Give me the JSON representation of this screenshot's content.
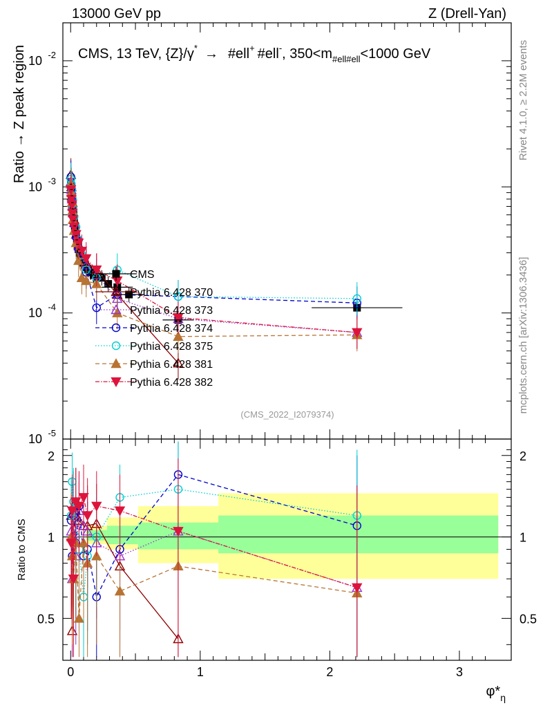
{
  "header": {
    "left": "13000 GeV pp",
    "right": "Z (Drell-Yan)"
  },
  "side_labels": {
    "rivet": "Rivet 4.1.0, ≥ 2.2M events",
    "site": "mcplots.cern.ch [arXiv:1306.3436]"
  },
  "chart_data": {
    "type": "scatter",
    "title": "CMS, 13 TeV, {Z}/γ* → #ell⁺ #ell⁻, 350<m_{#ell#ell}<1000 GeV",
    "title_parts": {
      "main": "CMS, 13 TeV, {Z}/γ",
      "star": "*",
      "arrow": "→",
      "lep1": "#ell",
      "sup1": "+",
      "lep2": "#ell",
      "sup2": "-",
      "mass": ", 350<m",
      "mass_sub": "#ell#ell",
      "mass_end": "<1000 GeV"
    },
    "watermark": "(CMS_2022_I2079374)",
    "xlabel": "φ*",
    "xlabel_sub": "η",
    "ylabel": "Ratio → Z peak region",
    "ylabel_ratio": "Ratio to CMS",
    "xlim": [
      -0.06,
      3.4
    ],
    "ylim": [
      1e-05,
      0.02
    ],
    "ylim_ratio": [
      0.35,
      2.3
    ],
    "x_ticks": [
      "0",
      "1",
      "2",
      "3"
    ],
    "x_tick_values": [
      0,
      1,
      2,
      3
    ],
    "y_ticks": [
      {
        "value": 0.01,
        "base": "10",
        "exp": "-2"
      },
      {
        "value": 0.001,
        "base": "10",
        "exp": "-3"
      },
      {
        "value": 0.0001,
        "base": "10",
        "exp": "-4"
      },
      {
        "value": 1e-05,
        "base": "10",
        "exp": "-5"
      }
    ],
    "ratio_ticks": [
      {
        "value": 0.5,
        "label": "0.5"
      },
      {
        "value": 1,
        "label": "1"
      },
      {
        "value": 2,
        "label": "2"
      }
    ],
    "bins": [
      [
        0.0,
        0.004
      ],
      [
        0.004,
        0.008
      ],
      [
        0.008,
        0.012
      ],
      [
        0.012,
        0.016
      ],
      [
        0.016,
        0.02
      ],
      [
        0.02,
        0.024
      ],
      [
        0.024,
        0.029
      ],
      [
        0.029,
        0.034
      ],
      [
        0.034,
        0.039
      ],
      [
        0.039,
        0.045
      ],
      [
        0.045,
        0.051
      ],
      [
        0.051,
        0.057
      ],
      [
        0.057,
        0.064
      ],
      [
        0.064,
        0.072
      ],
      [
        0.072,
        0.081
      ],
      [
        0.081,
        0.091
      ],
      [
        0.091,
        0.102
      ],
      [
        0.102,
        0.114
      ],
      [
        0.114,
        0.128
      ],
      [
        0.128,
        0.145
      ],
      [
        0.145,
        0.165
      ],
      [
        0.165,
        0.189
      ],
      [
        0.189,
        0.219
      ],
      [
        0.219,
        0.258
      ],
      [
        0.258,
        0.312
      ],
      [
        0.312,
        0.391
      ],
      [
        0.391,
        0.524
      ],
      [
        0.524,
        0.695
      ],
      [
        0.695,
        0.918
      ],
      [
        0.918,
        1.153
      ],
      [
        1.153,
        1.496
      ],
      [
        1.496,
        1.947
      ],
      [
        1.947,
        2.522
      ],
      [
        2.522,
        3.277
      ]
    ],
    "series": [
      {
        "name": "CMS",
        "color": "#000000",
        "marker": "square",
        "dash": "",
        "x": [
          0.002,
          0.006,
          0.01,
          0.014,
          0.018,
          0.022,
          0.027,
          0.032,
          0.037,
          0.042,
          0.048,
          0.054,
          0.061,
          0.068,
          0.077,
          0.086,
          0.097,
          0.108,
          0.12,
          0.136,
          0.155,
          0.177,
          0.2,
          0.24,
          0.29,
          0.36,
          0.45,
          0.83,
          2.21
        ],
        "y": [
          0.00105,
          0.00095,
          0.00085,
          0.00075,
          0.00067,
          0.0006,
          0.00054,
          0.00049,
          0.00045,
          0.00041,
          0.00038,
          0.00035,
          0.00032,
          0.0003,
          0.00028,
          0.00026,
          0.00025,
          0.00024,
          0.00023,
          0.00022,
          0.00021,
          0.0002,
          0.00019,
          0.00019,
          0.00017,
          0.00016,
          0.00014,
          8.8e-05,
          0.00011
        ]
      },
      {
        "name": "Pythia 6.428 370",
        "color": "#8b0000",
        "marker": "tri-up-open",
        "dash": "",
        "x": [
          0.002,
          0.006,
          0.01,
          0.014,
          0.018,
          0.027,
          0.042,
          0.061,
          0.086,
          0.12,
          0.2,
          0.36,
          0.83
        ],
        "y": [
          0.00125,
          0.001,
          0.00085,
          0.00075,
          0.00063,
          0.00055,
          0.00042,
          0.00035,
          0.00028,
          0.00025,
          0.00022,
          0.00014,
          4e-05
        ]
      },
      {
        "name": "Pythia 6.428 373",
        "color": "#9932cc",
        "marker": "tri-up-open",
        "dash": "1.5,2.5",
        "x": [
          0.002,
          0.006,
          0.01,
          0.014,
          0.018,
          0.027,
          0.042,
          0.061,
          0.086,
          0.12,
          0.2,
          0.36,
          0.83,
          2.21
        ],
        "y": [
          0.0011,
          0.00095,
          0.0008,
          0.0007,
          0.00062,
          0.00052,
          0.00042,
          0.00034,
          0.00028,
          0.00024,
          0.0002,
          0.00013,
          9e-05,
          7e-05
        ]
      },
      {
        "name": "Pythia 6.428 374",
        "color": "#0000cd",
        "marker": "circle-open",
        "dash": "6,4",
        "x": [
          0.002,
          0.006,
          0.01,
          0.014,
          0.018,
          0.027,
          0.042,
          0.061,
          0.086,
          0.12,
          0.2,
          0.36,
          0.83,
          2.21
        ],
        "y": [
          0.0012,
          0.00098,
          0.00078,
          0.00068,
          0.0006,
          0.0005,
          0.0004,
          0.00032,
          0.00026,
          0.00021,
          0.00011,
          0.00014,
          0.000135,
          0.00012
        ]
      },
      {
        "name": "Pythia 6.428 375",
        "color": "#00ced1",
        "marker": "circle-open",
        "dash": "1.5,2.5",
        "x": [
          0.002,
          0.006,
          0.01,
          0.014,
          0.018,
          0.027,
          0.042,
          0.061,
          0.086,
          0.12,
          0.2,
          0.36,
          0.83,
          2.21
        ],
        "y": [
          0.00115,
          0.00105,
          0.00095,
          0.0008,
          0.00068,
          0.00058,
          0.00048,
          0.00038,
          0.00029,
          0.00022,
          0.00019,
          0.00022,
          0.000135,
          0.00013
        ]
      },
      {
        "name": "Pythia 6.428 381",
        "color": "#b87333",
        "marker": "tri-up-filled",
        "dash": "6,4",
        "x": [
          0.002,
          0.006,
          0.01,
          0.014,
          0.018,
          0.027,
          0.042,
          0.061,
          0.086,
          0.12,
          0.2,
          0.36,
          0.83,
          2.21
        ],
        "y": [
          0.00105,
          0.0009,
          0.00075,
          0.00065,
          0.00055,
          0.00045,
          0.00036,
          0.00026,
          0.00019,
          0.00018,
          0.00017,
          0.0001,
          6.5e-05,
          6.7e-05
        ]
      },
      {
        "name": "Pythia 6.428 382",
        "color": "#dc143c",
        "marker": "tri-down-filled",
        "dash": "6,2,1.5,2",
        "x": [
          0.002,
          0.006,
          0.01,
          0.014,
          0.018,
          0.027,
          0.042,
          0.061,
          0.086,
          0.12,
          0.2,
          0.36,
          0.83,
          2.21
        ],
        "y": [
          0.00095,
          0.0008,
          0.00072,
          0.00062,
          0.00055,
          0.00048,
          0.00042,
          0.00036,
          0.00031,
          0.00027,
          0.00022,
          0.00018,
          9.2e-05,
          7e-05
        ]
      }
    ],
    "ratio_series": [
      {
        "name": "Pythia 6.428 370",
        "x": [
          0.004,
          0.012,
          0.022,
          0.04,
          0.065,
          0.1,
          0.13,
          0.2,
          0.38,
          0.83
        ],
        "y": [
          1.2,
          0.45,
          1.3,
          1.35,
          1.15,
          1.1,
          1.1,
          1.12,
          0.78,
          0.42
        ]
      },
      {
        "name": "Pythia 6.428 373",
        "x": [
          0.004,
          0.012,
          0.022,
          0.04,
          0.065,
          0.1,
          0.13,
          0.2,
          0.38,
          0.83,
          2.21
        ],
        "y": [
          1.05,
          0.7,
          1.0,
          0.85,
          1.25,
          1.1,
          1.05,
          0.95,
          0.85,
          1.05,
          0.65
        ]
      },
      {
        "name": "Pythia 6.428 374",
        "x": [
          0.004,
          0.012,
          0.022,
          0.04,
          0.065,
          0.1,
          0.13,
          0.2,
          0.38,
          0.83,
          2.21
        ],
        "y": [
          1.15,
          0.85,
          1.2,
          0.95,
          1.3,
          0.85,
          0.9,
          0.6,
          0.9,
          1.7,
          1.1
        ]
      },
      {
        "name": "Pythia 6.428 375",
        "x": [
          0.004,
          0.012,
          0.022,
          0.04,
          0.065,
          0.1,
          0.13,
          0.2,
          0.38,
          0.83,
          2.21
        ],
        "y": [
          1.2,
          1.6,
          1.35,
          1.0,
          0.9,
          0.6,
          0.85,
          1.0,
          1.4,
          1.5,
          1.2
        ]
      },
      {
        "name": "Pythia 6.428 381",
        "x": [
          0.004,
          0.012,
          0.022,
          0.04,
          0.065,
          0.1,
          0.13,
          0.2,
          0.38,
          0.83,
          2.21
        ],
        "y": [
          1.0,
          0.85,
          0.7,
          0.95,
          0.5,
          0.95,
          0.8,
          0.85,
          0.63,
          0.78,
          0.62
        ]
      },
      {
        "name": "Pythia 6.428 382",
        "x": [
          0.004,
          0.012,
          0.022,
          0.04,
          0.065,
          0.1,
          0.13,
          0.2,
          0.38,
          0.83,
          2.21
        ],
        "y": [
          0.95,
          1.25,
          0.7,
          1.35,
          1.3,
          1.4,
          1.2,
          1.3,
          1.25,
          1.05,
          0.65
        ]
      }
    ],
    "ratio_bands": {
      "inner": [
        {
          "x0": 0.12,
          "x1": 0.28,
          "lo": 0.97,
          "hi": 1.06
        },
        {
          "x0": 0.28,
          "x1": 0.52,
          "lo": 0.94,
          "hi": 1.1
        },
        {
          "x0": 0.52,
          "x1": 1.14,
          "lo": 0.9,
          "hi": 1.13
        },
        {
          "x0": 1.14,
          "x1": 3.3,
          "lo": 0.87,
          "hi": 1.2
        }
      ],
      "outer": [
        {
          "x0": 0.12,
          "x1": 0.28,
          "lo": 0.94,
          "hi": 1.1
        },
        {
          "x0": 0.28,
          "x1": 0.52,
          "lo": 0.9,
          "hi": 1.18
        },
        {
          "x0": 0.52,
          "x1": 1.14,
          "lo": 0.8,
          "hi": 1.3
        },
        {
          "x0": 1.14,
          "x1": 3.3,
          "lo": 0.7,
          "hi": 1.45
        }
      ]
    },
    "legend_position": "center"
  }
}
